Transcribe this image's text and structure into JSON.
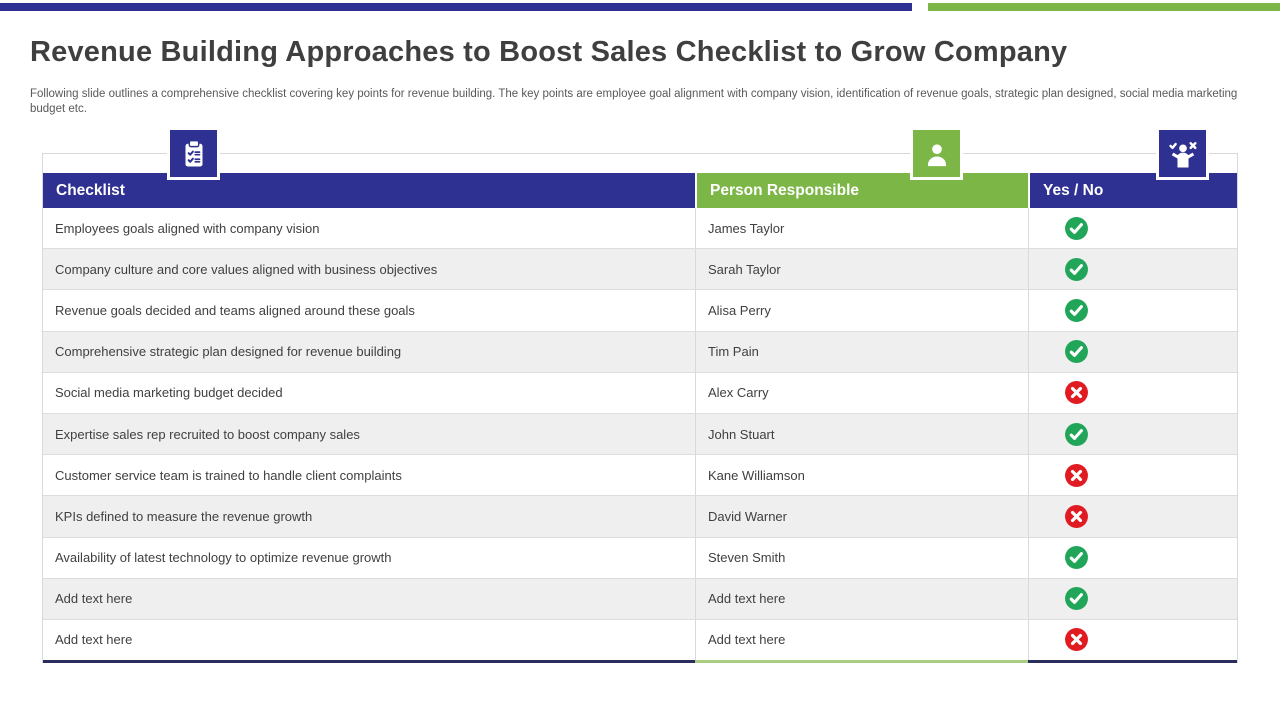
{
  "slide": {
    "title": "Revenue Building Approaches to Boost Sales Checklist to Grow Company",
    "subtitle": "Following slide outlines a comprehensive checklist covering key points for revenue building. The key points are employee goal alignment with company vision, identification of revenue goals, strategic plan designed, social media marketing budget etc."
  },
  "colors": {
    "navy": "#2E3192",
    "green": "#7CB646",
    "check_green": "#21A559",
    "cross_red": "#E01B22",
    "row_alt": "#EFEFEF",
    "body_text": "#404040"
  },
  "table": {
    "columns": [
      {
        "label": "Checklist",
        "icon": "clipboard-checklist-icon"
      },
      {
        "label": "Person Responsible",
        "icon": "person-icon"
      },
      {
        "label": "Yes / No",
        "icon": "person-check-cross-icon"
      }
    ],
    "rows": [
      {
        "checklist": "Employees goals aligned with company vision",
        "person": "James Taylor",
        "status": "yes"
      },
      {
        "checklist": "Company culture and core values aligned with business objectives",
        "person": "Sarah Taylor",
        "status": "yes"
      },
      {
        "checklist": "Revenue goals decided and teams aligned around these goals",
        "person": "Alisa Perry",
        "status": "yes"
      },
      {
        "checklist": "Comprehensive strategic plan designed for revenue building",
        "person": "Tim Pain",
        "status": "yes"
      },
      {
        "checklist": "Social media marketing budget decided",
        "person": "Alex Carry",
        "status": "no"
      },
      {
        "checklist": "Expertise sales rep recruited to boost company sales",
        "person": "John Stuart",
        "status": "yes"
      },
      {
        "checklist": "Customer service team is trained to handle client complaints",
        "person": "Kane Williamson",
        "status": "no"
      },
      {
        "checklist": "KPIs defined to measure the revenue growth",
        "person": "David Warner",
        "status": "no"
      },
      {
        "checklist": "Availability of latest technology to optimize revenue growth",
        "person": "Steven Smith",
        "status": "yes"
      },
      {
        "checklist": "Add text here",
        "person": "Add text here",
        "status": "yes"
      },
      {
        "checklist": "Add text here",
        "person": "Add text here",
        "status": "no"
      }
    ]
  }
}
